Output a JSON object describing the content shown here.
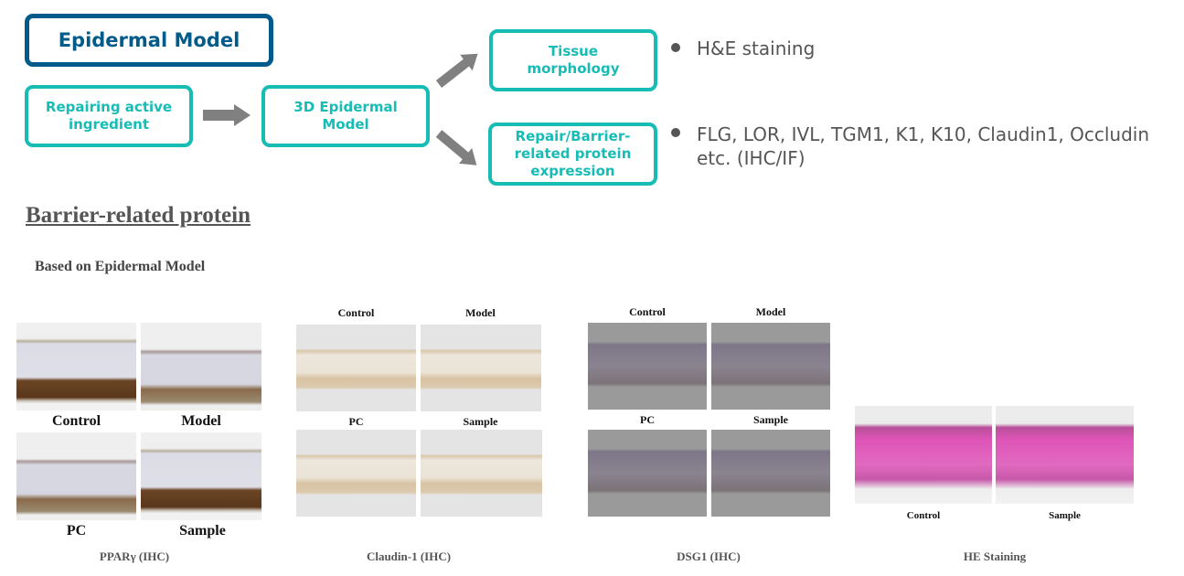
{
  "flow": {
    "title": "Epidermal Model",
    "input": "Repairing active ingredient",
    "model": "3D Epidermal Model",
    "out1": "Tissue morphology",
    "out2": "Repair/Barrier-related protein expression",
    "bullet1": "H&E staining",
    "bullet2": "FLG, LOR, IVL, TGM1, K1, K10, Claudin1, Occludin etc. (IHC/IF)",
    "colors": {
      "teal": "#17bcb5",
      "navy": "#005b8a",
      "arrow": "#808080"
    }
  },
  "section": {
    "heading": "Barrier-related protein",
    "subheading": "Based on Epidermal Model"
  },
  "figures": [
    {
      "caption": "PPARγ (IHC)",
      "labels": [
        "Control",
        "Model",
        "PC",
        "Sample"
      ]
    },
    {
      "caption": "Claudin-1 (IHC)",
      "labels": [
        "Control",
        "Model",
        "PC",
        "Sample"
      ]
    },
    {
      "caption": "DSG1 (IHC)",
      "labels": [
        "Control",
        "Model",
        "PC",
        "Sample"
      ]
    },
    {
      "caption": "HE Staining",
      "labels": [
        "Control",
        "Sample"
      ]
    }
  ]
}
